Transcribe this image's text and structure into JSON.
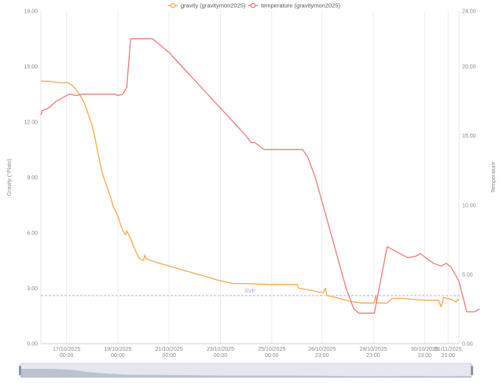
{
  "chart_data": {
    "type": "line",
    "legend": {
      "position": "top-center",
      "items": [
        {
          "name": "gravity (gravitymon2025)",
          "color": "#f7a84a"
        },
        {
          "name": "temperature (gravitymon2025)",
          "color": "#f07878"
        }
      ]
    },
    "x_ticks": [
      {
        "x": 1.0,
        "line1": "17/10/2025",
        "line2": "00:00"
      },
      {
        "x": 3.0,
        "line1": "19/10/2025",
        "line2": "00:00"
      },
      {
        "x": 5.0,
        "line1": "21/10/2025",
        "line2": "00:00"
      },
      {
        "x": 7.0,
        "line1": "23/10/2025",
        "line2": "00:00"
      },
      {
        "x": 9.0,
        "line1": "25/10/2025",
        "line2": "00:00"
      },
      {
        "x": 10.96,
        "line1": "26/10/2025",
        "line2": "23:00"
      },
      {
        "x": 12.96,
        "line1": "28/10/2025",
        "line2": "23:00"
      },
      {
        "x": 14.96,
        "line1": "30/10/2025",
        "line2": "23:00"
      },
      {
        "x": 15.875,
        "line1": "01/11/2025",
        "line2": "21:00"
      }
    ],
    "xlim": [
      0,
      16.3
    ],
    "y_left": {
      "label": "Gravity (°Plato)",
      "min": 0,
      "max": 18,
      "ticks": [
        "0.00",
        "3.00",
        "6.00",
        "9.00",
        "12.00",
        "15.00",
        "18.00"
      ]
    },
    "y_right": {
      "label": "Temperature",
      "min": 0,
      "max": 24,
      "ticks": [
        "0.00",
        "5.00",
        "10.00",
        "15.00",
        "20.00",
        "24.00"
      ]
    },
    "grid": "vertical",
    "reference_line": {
      "label": "SVP",
      "y": 2.6,
      "axis": "left",
      "color": "#b0b4e8"
    },
    "series": [
      {
        "name": "gravity",
        "axis": "left",
        "color": "#f7a84a",
        "points": [
          [
            0,
            14.2
          ],
          [
            0.3,
            14.2
          ],
          [
            0.6,
            14.15
          ],
          [
            0.9,
            14.1
          ],
          [
            1.0,
            14.15
          ],
          [
            1.05,
            14.1
          ],
          [
            1.2,
            14.0
          ],
          [
            1.35,
            13.8
          ],
          [
            1.5,
            13.5
          ],
          [
            1.7,
            13.0
          ],
          [
            1.85,
            12.4
          ],
          [
            2.0,
            11.8
          ],
          [
            2.1,
            11.2
          ],
          [
            2.2,
            10.5
          ],
          [
            2.3,
            9.8
          ],
          [
            2.4,
            9.2
          ],
          [
            2.5,
            8.8
          ],
          [
            2.6,
            8.4
          ],
          [
            2.7,
            8.0
          ],
          [
            2.75,
            7.8
          ],
          [
            2.8,
            7.5
          ],
          [
            2.9,
            7.2
          ],
          [
            3.0,
            6.9
          ],
          [
            3.1,
            6.5
          ],
          [
            3.2,
            6.1
          ],
          [
            3.3,
            5.9
          ],
          [
            3.35,
            6.1
          ],
          [
            3.5,
            5.7
          ],
          [
            3.6,
            5.3
          ],
          [
            3.7,
            5.0
          ],
          [
            3.8,
            4.7
          ],
          [
            3.9,
            4.55
          ],
          [
            4.0,
            4.5
          ],
          [
            4.05,
            4.8
          ],
          [
            4.1,
            4.6
          ],
          [
            4.5,
            4.4
          ],
          [
            5.0,
            4.2
          ],
          [
            5.5,
            4.0
          ],
          [
            6.0,
            3.8
          ],
          [
            6.5,
            3.6
          ],
          [
            7.0,
            3.4
          ],
          [
            7.5,
            3.25
          ],
          [
            8.0,
            3.25
          ],
          [
            8.5,
            3.22
          ],
          [
            9.0,
            3.2
          ],
          [
            9.5,
            3.2
          ],
          [
            10.0,
            3.2
          ],
          [
            10.05,
            3.0
          ],
          [
            10.5,
            2.9
          ],
          [
            11.0,
            2.75
          ],
          [
            11.1,
            3.0
          ],
          [
            11.15,
            2.6
          ],
          [
            11.5,
            2.5
          ],
          [
            12.0,
            2.3
          ],
          [
            12.5,
            2.2
          ],
          [
            13.0,
            2.2
          ],
          [
            13.05,
            2.6
          ],
          [
            13.1,
            2.2
          ],
          [
            13.5,
            2.2
          ],
          [
            13.7,
            2.45
          ],
          [
            14.0,
            2.45
          ],
          [
            14.5,
            2.4
          ],
          [
            15.0,
            2.35
          ],
          [
            15.5,
            2.35
          ],
          [
            15.6,
            2.0
          ],
          [
            15.7,
            2.5
          ],
          [
            16.0,
            2.4
          ],
          [
            16.2,
            2.25
          ],
          [
            16.25,
            2.4
          ],
          [
            16.3,
            2.35
          ]
        ]
      },
      {
        "name": "temperature",
        "axis": "right",
        "color": "#f07878",
        "points": [
          [
            0,
            16.5
          ],
          [
            0.05,
            16.8
          ],
          [
            0.3,
            17.0
          ],
          [
            0.6,
            17.5
          ],
          [
            0.9,
            17.8
          ],
          [
            1.1,
            18.0
          ],
          [
            1.4,
            17.9
          ],
          [
            1.6,
            18.0
          ],
          [
            2.5,
            18.0
          ],
          [
            2.9,
            18.0
          ],
          [
            3.0,
            17.9
          ],
          [
            3.2,
            18.0
          ],
          [
            3.35,
            18.5
          ],
          [
            3.5,
            22.0
          ],
          [
            4.0,
            22.0
          ],
          [
            4.35,
            22.0
          ],
          [
            5.0,
            21.0
          ],
          [
            5.5,
            20.0
          ],
          [
            6.0,
            19.0
          ],
          [
            6.5,
            18.0
          ],
          [
            7.0,
            17.0
          ],
          [
            7.5,
            16.0
          ],
          [
            8.0,
            15.0
          ],
          [
            8.2,
            14.5
          ],
          [
            8.35,
            14.5
          ],
          [
            8.5,
            14.3
          ],
          [
            8.7,
            14.0
          ],
          [
            9.0,
            14.0
          ],
          [
            9.5,
            14.0
          ],
          [
            10.2,
            14.0
          ],
          [
            10.4,
            13.5
          ],
          [
            10.7,
            12.0
          ],
          [
            11.0,
            10.0
          ],
          [
            11.3,
            8.0
          ],
          [
            11.6,
            6.0
          ],
          [
            11.9,
            4.0
          ],
          [
            12.2,
            2.5
          ],
          [
            12.4,
            2.2
          ],
          [
            12.6,
            2.2
          ],
          [
            13.0,
            2.2
          ],
          [
            13.5,
            7.0
          ],
          [
            14.0,
            6.5
          ],
          [
            14.3,
            6.2
          ],
          [
            14.6,
            6.3
          ],
          [
            14.8,
            6.5
          ],
          [
            15.0,
            6.2
          ],
          [
            15.3,
            5.8
          ],
          [
            15.6,
            5.6
          ],
          [
            15.8,
            5.8
          ],
          [
            16.0,
            5.5
          ],
          [
            16.3,
            4.5
          ],
          [
            16.6,
            2.3
          ],
          [
            16.9,
            2.3
          ],
          [
            17.1,
            2.5
          ]
        ]
      }
    ]
  }
}
